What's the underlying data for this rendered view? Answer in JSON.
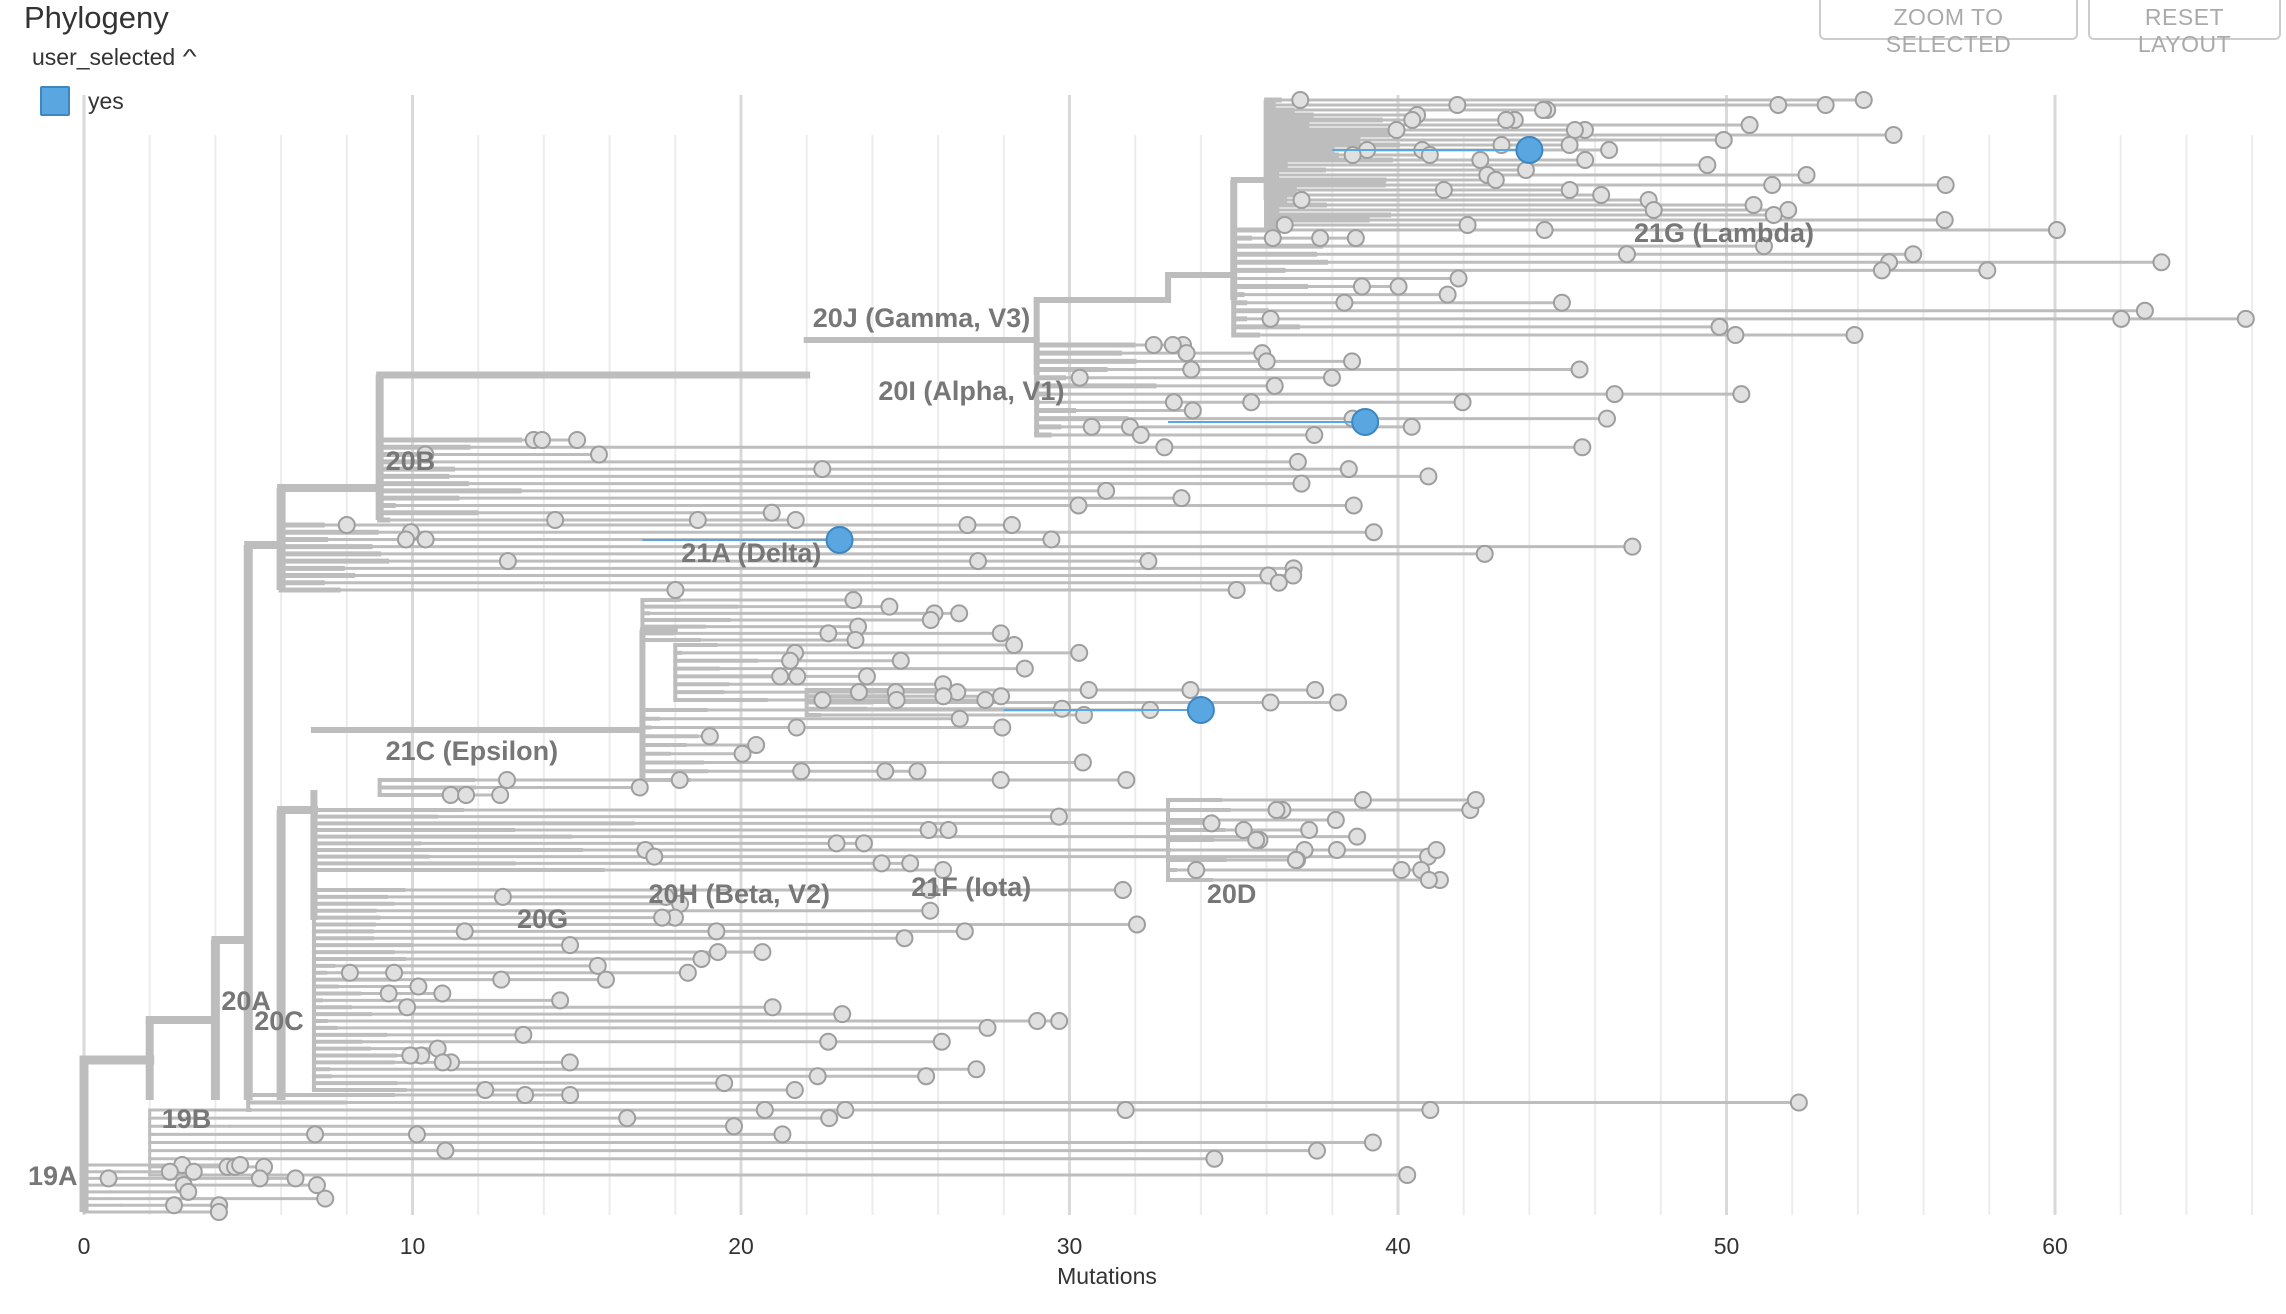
{
  "panel": {
    "title": "Phylogeny",
    "legend_title": "user_selected",
    "legend_toggle_icon": "chevron-up-icon",
    "legend_items": [
      {
        "label": "yes",
        "color": "#5aa6e0"
      }
    ]
  },
  "buttons": {
    "zoom_selected": "ZOOM TO SELECTED",
    "reset_layout": "RESET LAYOUT"
  },
  "colors": {
    "branch": "#bdbdbd",
    "tip_fill": "#e0e0e0",
    "tip_stroke": "#9e9e9e",
    "selected": "#5aa6e0",
    "grid_major": "#d9d9d9",
    "grid_minor": "#ececec"
  },
  "chart_data": {
    "type": "phylogenetic_tree",
    "xlabel": "Mutations",
    "xlim": [
      0,
      67
    ],
    "x_ticks": [
      0,
      10,
      20,
      30,
      40,
      50,
      60
    ],
    "x_tick_labels": [
      "0",
      "10",
      "20",
      "30",
      "40",
      "50",
      "60"
    ],
    "grid": true,
    "clade_labels": [
      {
        "label": "19A",
        "x": 0
      },
      {
        "label": "19B",
        "x": 2
      },
      {
        "label": "20A",
        "x": 4
      },
      {
        "label": "20C",
        "x": 5
      },
      {
        "label": "20B",
        "x": 9
      },
      {
        "label": "20G",
        "x": 13
      },
      {
        "label": "20H (Beta, V2)",
        "x": 17
      },
      {
        "label": "21F (Iota)",
        "x": 25
      },
      {
        "label": "20D",
        "x": 34
      },
      {
        "label": "21C (Epsilon)",
        "x": 9
      },
      {
        "label": "21A (Delta)",
        "x": 18
      },
      {
        "label": "20I (Alpha, V1)",
        "x": 24
      },
      {
        "label": "20J (Gamma, V3)",
        "x": 22
      },
      {
        "label": "21G (Lambda)",
        "x": 47
      }
    ],
    "selected_tips": [
      {
        "clade": "21G (Lambda)",
        "x": 44
      },
      {
        "clade": "20I (Alpha, V1)",
        "x": 39
      },
      {
        "clade": "21A (Delta)",
        "x": 23
      },
      {
        "clade": "21C (Epsilon)",
        "x": 34
      }
    ],
    "tip_count_note": ""
  }
}
